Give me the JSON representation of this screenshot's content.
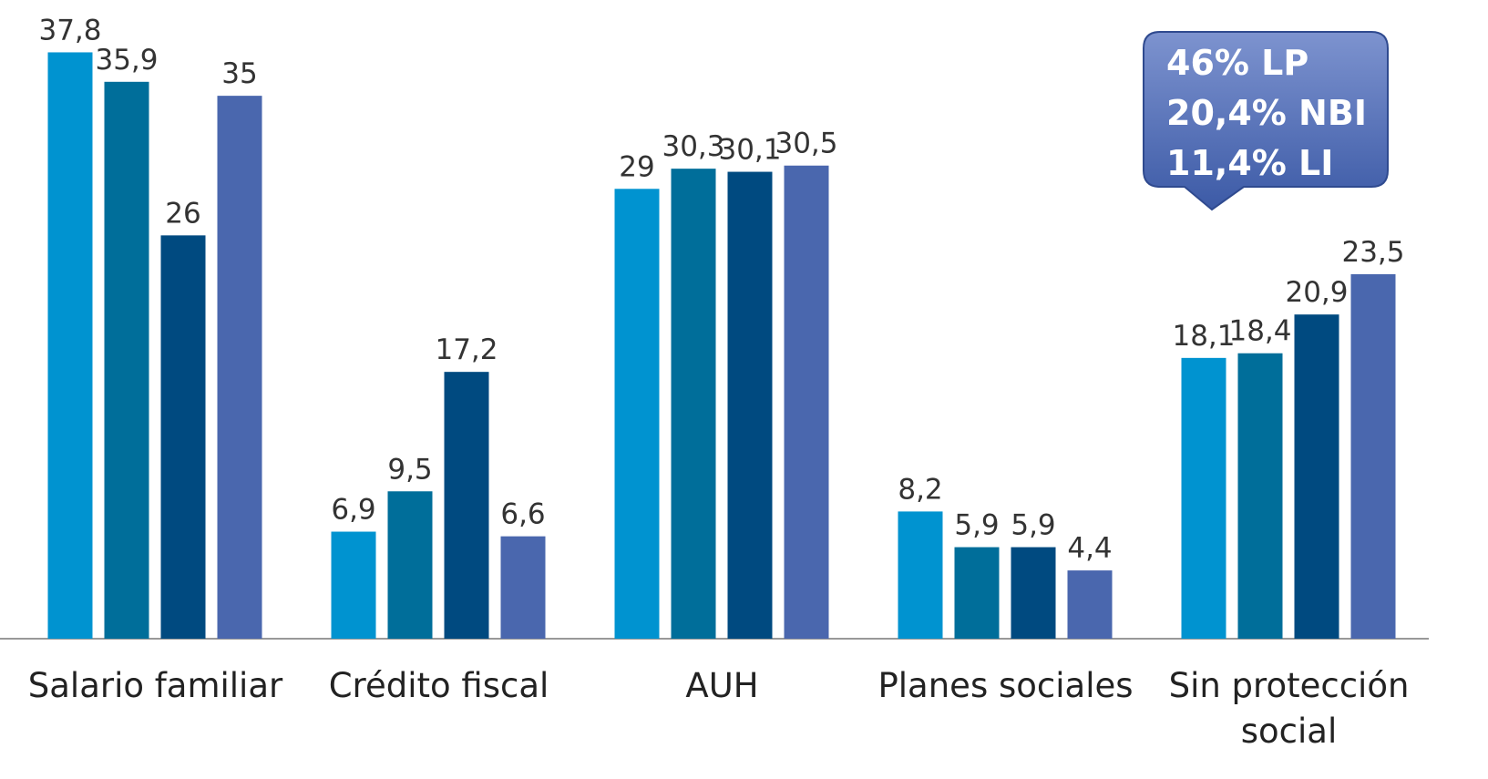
{
  "chart_data": {
    "type": "bar",
    "categories": [
      "Salario familiar",
      "Crédito fiscal",
      "AUH",
      "Planes sociales",
      "Sin protección social"
    ],
    "series": [
      {
        "color": "#0093d0",
        "values": [
          37.8,
          6.9,
          29,
          8.2,
          18.1
        ],
        "value_labels": [
          "37,8",
          "6,9",
          "29",
          "8,2",
          "18,1"
        ]
      },
      {
        "color": "#006e9a",
        "values": [
          35.9,
          9.5,
          30.3,
          5.9,
          18.4
        ],
        "value_labels": [
          "35,9",
          "9,5",
          "30,3",
          "5,9",
          "18,4"
        ]
      },
      {
        "color": "#004a80",
        "values": [
          26,
          17.2,
          30.1,
          5.9,
          20.9
        ],
        "value_labels": [
          "26",
          "17,2",
          "30,1",
          "5,9",
          "20,9"
        ]
      },
      {
        "color": "#4a67ae",
        "values": [
          35,
          6.6,
          30.5,
          4.4,
          23.5
        ],
        "value_labels": [
          "35",
          "6,6",
          "30,5",
          "4,4",
          "23,5"
        ]
      }
    ],
    "ylim": [
      0,
      40
    ],
    "annotations": [
      "46% LP",
      "20,4% NBI",
      "11,4% LI"
    ]
  }
}
